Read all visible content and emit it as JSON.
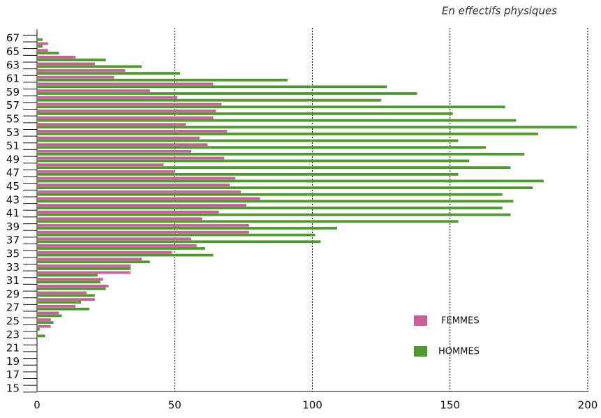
{
  "chart_data": {
    "type": "hbar",
    "subtitle": "En effectifs physiques",
    "categories": [
      15,
      null,
      17,
      null,
      19,
      null,
      21,
      null,
      23,
      null,
      25,
      null,
      27,
      null,
      29,
      null,
      31,
      null,
      33,
      null,
      35,
      null,
      37,
      null,
      39,
      null,
      41,
      null,
      43,
      null,
      45,
      null,
      47,
      null,
      49,
      null,
      51,
      null,
      53,
      null,
      55,
      null,
      57,
      null,
      59,
      null,
      61,
      null,
      63,
      null,
      65,
      null,
      67
    ],
    "series": [
      {
        "name": "FEMMES",
        "color": "#c9609a",
        "values": [
          0,
          0,
          0,
          0,
          0,
          0,
          0,
          0,
          0,
          5,
          5,
          8,
          14,
          21,
          18,
          26,
          24,
          34,
          34,
          38,
          49,
          58,
          56,
          77,
          77,
          60,
          66,
          76,
          81,
          74,
          70,
          72,
          50,
          46,
          68,
          56,
          62,
          59,
          69,
          54,
          64,
          65,
          67,
          51,
          41,
          64,
          28,
          32,
          21,
          14,
          4,
          4,
          0
        ]
      },
      {
        "name": "HOMMES",
        "color": "#4f9a2e",
        "values": [
          0,
          0,
          0,
          0,
          0,
          0,
          0,
          0,
          3,
          1,
          6,
          9,
          19,
          16,
          21,
          25,
          23,
          22,
          34,
          41,
          64,
          61,
          103,
          101,
          109,
          153,
          172,
          169,
          173,
          169,
          180,
          184,
          153,
          172,
          157,
          177,
          163,
          153,
          182,
          196,
          174,
          151,
          170,
          125,
          138,
          127,
          91,
          52,
          38,
          25,
          8,
          2,
          2
        ]
      }
    ],
    "xlim": [
      0,
      200
    ],
    "xticks": [
      0,
      50,
      100,
      150,
      200
    ],
    "grid": true
  }
}
